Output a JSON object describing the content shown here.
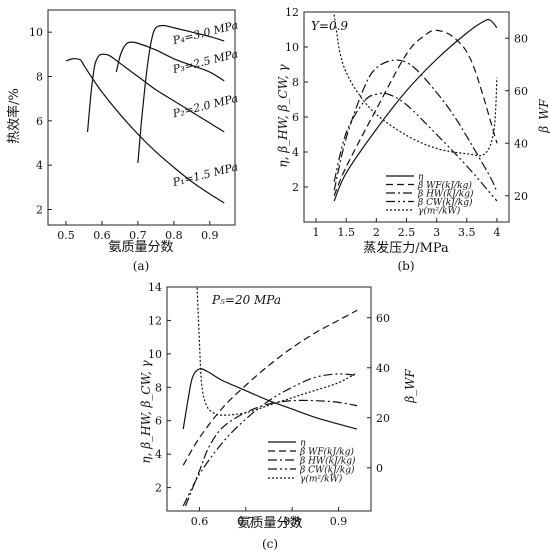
{
  "chart_data": [
    {
      "id": "a",
      "type": "line",
      "caption": "(a)",
      "xlabel": "氨质量分数",
      "ylabel": "热效率/%",
      "xlim": [
        0.45,
        0.97
      ],
      "ylim": [
        1.3,
        11.0
      ],
      "xticks": [
        0.5,
        0.6,
        0.7,
        0.8,
        0.9
      ],
      "yticks": [
        2,
        4,
        6,
        8,
        10
      ],
      "series": [
        {
          "name": "P₁=1.5 MPa",
          "x": [
            0.5,
            0.52,
            0.54,
            0.55,
            0.57,
            0.6,
            0.65,
            0.7,
            0.75,
            0.8,
            0.85,
            0.9,
            0.94
          ],
          "y": [
            8.7,
            8.8,
            8.75,
            8.5,
            8.0,
            7.3,
            6.3,
            5.4,
            4.6,
            3.9,
            3.25,
            2.7,
            2.3
          ]
        },
        {
          "name": "P₂=2.0 MPa",
          "x": [
            0.56,
            0.57,
            0.58,
            0.59,
            0.6,
            0.62,
            0.65,
            0.7,
            0.75,
            0.8,
            0.85,
            0.9,
            0.94
          ],
          "y": [
            5.5,
            7.3,
            8.5,
            8.9,
            9.0,
            8.95,
            8.6,
            8.0,
            7.4,
            6.9,
            6.4,
            5.9,
            5.5
          ]
        },
        {
          "name": "P₃=2.5 MPa",
          "x": [
            0.64,
            0.65,
            0.66,
            0.67,
            0.68,
            0.7,
            0.75,
            0.8,
            0.85,
            0.9,
            0.94
          ],
          "y": [
            8.2,
            8.9,
            9.3,
            9.5,
            9.55,
            9.5,
            9.2,
            8.8,
            8.5,
            8.2,
            7.8
          ]
        },
        {
          "name": "P₄=3.0 MPa",
          "x": [
            0.7,
            0.71,
            0.72,
            0.73,
            0.74,
            0.75,
            0.77,
            0.8,
            0.85,
            0.9,
            0.94
          ],
          "y": [
            4.1,
            6.0,
            7.6,
            8.9,
            9.8,
            10.2,
            10.3,
            10.2,
            10.0,
            9.8,
            9.6
          ]
        }
      ],
      "labels": [
        {
          "text": "P₄=3.0 MPa",
          "series": 3,
          "x": 0.8,
          "y": 9.45
        },
        {
          "text": "P₃=2.5 MPa",
          "series": 2,
          "x": 0.8,
          "y": 8.15
        },
        {
          "text": "P₂=2.0 MPa",
          "series": 1,
          "x": 0.8,
          "y": 6.15
        },
        {
          "text": "P₁=1.5 MPa",
          "series": 0,
          "x": 0.8,
          "y": 3.05
        }
      ]
    },
    {
      "id": "b",
      "type": "line",
      "caption": "(b)",
      "annotation": "Y=0.9",
      "xlabel": "蒸发压力/MPa",
      "ylabel": "η, β_HW, β_CW, γ",
      "y2label": "β_WF",
      "xlim": [
        0.8,
        4.2
      ],
      "ylim": [
        0,
        12
      ],
      "y2lim": [
        10,
        90
      ],
      "xticks": [
        1,
        1.5,
        2,
        2.5,
        3,
        3.5,
        4
      ],
      "yticks": [
        2,
        4,
        6,
        8,
        10,
        12
      ],
      "y2ticks": [
        20,
        40,
        60,
        80
      ],
      "legend": [
        "η",
        "β_WF(kJ/kg)",
        "β_HW(kJ/kg)",
        "β_CW(kJ/kg)",
        "γ(m²/kW)"
      ],
      "series": [
        {
          "name": "η",
          "axis": "left",
          "x": [
            1.3,
            1.5,
            2.0,
            2.5,
            3.0,
            3.5,
            3.8,
            3.9,
            4.0
          ],
          "y": [
            1.2,
            2.8,
            5.3,
            7.5,
            9.3,
            10.8,
            11.5,
            11.5,
            11.1
          ]
        },
        {
          "name": "β_WF(kJ/kg)",
          "axis": "right",
          "x": [
            1.3,
            1.5,
            2.0,
            2.5,
            2.8,
            3.0,
            3.3,
            3.6,
            4.0
          ],
          "y": [
            20,
            31,
            53,
            74,
            81,
            83,
            80,
            70,
            40
          ]
        },
        {
          "name": "β_HW(kJ/kg)",
          "axis": "left",
          "x": [
            1.3,
            1.5,
            1.8,
            2.0,
            2.3,
            2.6,
            3.0,
            3.3,
            3.6,
            3.9,
            4.0
          ],
          "y": [
            1.8,
            4.8,
            7.7,
            8.8,
            9.25,
            8.9,
            7.4,
            6.0,
            4.3,
            2.5,
            1.7
          ]
        },
        {
          "name": "β_CW(kJ/kg)",
          "axis": "left",
          "x": [
            1.3,
            1.5,
            1.8,
            2.0,
            2.2,
            2.5,
            3.0,
            3.5,
            4.0
          ],
          "y": [
            2.3,
            5.1,
            6.9,
            7.3,
            7.3,
            6.7,
            5.0,
            3.2,
            1.2
          ]
        },
        {
          "name": "γ(m²/kW)",
          "axis": "right",
          "x": [
            1.3,
            1.35,
            1.4,
            1.5,
            1.7,
            2.0,
            2.5,
            3.0,
            3.5,
            3.8,
            3.95,
            4.0
          ],
          "y": [
            89,
            81,
            74,
            67,
            59,
            51,
            43,
            38,
            36,
            36,
            45,
            65
          ]
        }
      ]
    },
    {
      "id": "c",
      "type": "line",
      "caption": "(c)",
      "annotation": "P₅=20 MPa",
      "xlabel": "氨质量分数",
      "ylabel": "η, β_HW, β_CW, γ",
      "y2label": "β_WF",
      "xlim": [
        0.53,
        0.97
      ],
      "ylim": [
        0.6,
        14
      ],
      "y2lim": [
        -17.3,
        72.3
      ],
      "xticks": [
        0.6,
        0.7,
        0.8,
        0.9
      ],
      "yticks": [
        2,
        4,
        6,
        8,
        10,
        12,
        14
      ],
      "y2ticks": [
        0,
        20,
        40,
        60
      ],
      "legend": [
        "η",
        "β_WF(kJ/kg)",
        "β_HW(kJ/kg)",
        "β_CW(kJ/kg)",
        "γ(m²/kW)"
      ],
      "series": [
        {
          "name": "η",
          "axis": "left",
          "x": [
            0.565,
            0.575,
            0.585,
            0.6,
            0.62,
            0.65,
            0.7,
            0.75,
            0.8,
            0.85,
            0.9,
            0.94
          ],
          "y": [
            5.5,
            7.2,
            8.6,
            9.1,
            8.9,
            8.4,
            7.8,
            7.2,
            6.7,
            6.2,
            5.8,
            5.5
          ]
        },
        {
          "name": "β_WF(kJ/kg)",
          "axis": "right",
          "x": [
            0.565,
            0.6,
            0.65,
            0.7,
            0.75,
            0.8,
            0.85,
            0.9,
            0.94
          ],
          "y": [
            1,
            12,
            24,
            33,
            41,
            48,
            54,
            59,
            63
          ]
        },
        {
          "name": "β_HW(kJ/kg)",
          "axis": "left",
          "x": [
            0.57,
            0.6,
            0.62,
            0.65,
            0.7,
            0.75,
            0.8,
            0.85,
            0.9,
            0.94
          ],
          "y": [
            0.9,
            3.0,
            4.4,
            5.6,
            6.5,
            7.0,
            7.2,
            7.2,
            7.1,
            6.9
          ]
        },
        {
          "name": "β_CW(kJ/kg)",
          "axis": "left",
          "x": [
            0.565,
            0.6,
            0.65,
            0.7,
            0.75,
            0.8,
            0.85,
            0.9,
            0.94
          ],
          "y": [
            0.9,
            2.8,
            4.7,
            6.1,
            7.2,
            8.0,
            8.6,
            8.8,
            8.7
          ]
        },
        {
          "name": "γ(m²/kW)",
          "axis": "right",
          "x": [
            0.595,
            0.6,
            0.605,
            0.615,
            0.63,
            0.65,
            0.7,
            0.75,
            0.8,
            0.85,
            0.9,
            0.94
          ],
          "y": [
            72,
            50,
            33,
            25,
            22,
            21,
            22,
            25,
            28,
            31,
            34,
            38
          ]
        }
      ]
    }
  ]
}
